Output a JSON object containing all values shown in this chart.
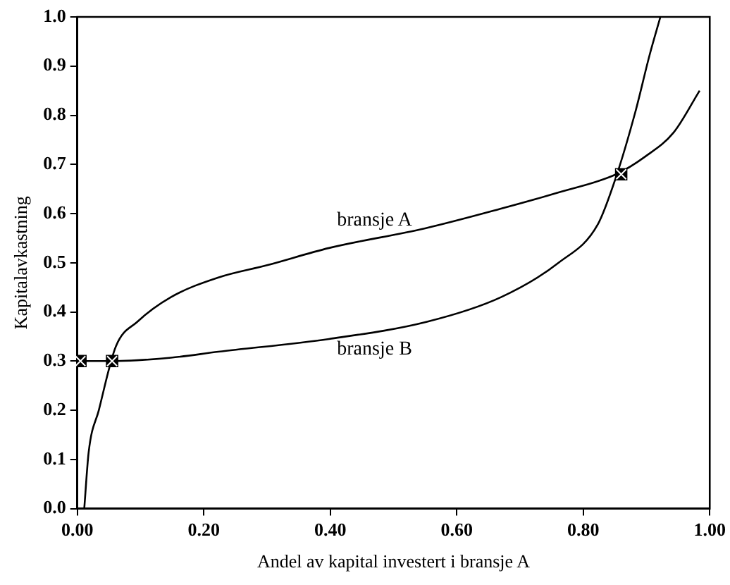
{
  "chart_data": {
    "type": "line",
    "xlabel": "Andel av kapital investert i bransje A",
    "ylabel": "Kapitalavkastning",
    "xlim": [
      0,
      1
    ],
    "xticks": [
      {
        "value": 0,
        "label": "0.00"
      },
      {
        "value": 0.2,
        "label": "0.20"
      },
      {
        "value": 0.4,
        "label": "0.40"
      },
      {
        "value": 0.6,
        "label": "0.60"
      },
      {
        "value": 0.8,
        "label": "0.80"
      },
      {
        "value": 1,
        "label": "1.00"
      }
    ],
    "ylim": [
      0,
      1
    ],
    "yticks": [
      {
        "value": 0,
        "label": "0.0"
      },
      {
        "value": 0.1,
        "label": "0.1"
      },
      {
        "value": 0.2,
        "label": "0.2"
      },
      {
        "value": 0.3,
        "label": "0.3"
      },
      {
        "value": 0.4,
        "label": "0.4"
      },
      {
        "value": 0.5,
        "label": "0.5"
      },
      {
        "value": 0.6,
        "label": "0.6"
      },
      {
        "value": 0.7,
        "label": "0.7"
      },
      {
        "value": 0.8,
        "label": "0.8"
      },
      {
        "value": 0.9,
        "label": "0.9"
      },
      {
        "value": 1,
        "label": "1.0"
      }
    ],
    "grid": false,
    "legend": false,
    "marker": "none",
    "line_style": "solid",
    "series": [
      {
        "name": "bransje A",
        "color": "#000000",
        "x": [
          0.011,
          0.018,
          0.034,
          0.061,
          0.095,
          0.148,
          0.223,
          0.3,
          0.398,
          0.55,
          0.67,
          0.761,
          0.852,
          0.898,
          0.943,
          0.984
        ],
        "values": [
          0,
          0.115,
          0.2,
          0.33,
          0.38,
          0.43,
          0.47,
          0.495,
          0.53,
          0.57,
          0.61,
          0.643,
          0.68,
          0.716,
          0.765,
          0.85
        ]
      },
      {
        "name": "bransje B",
        "color": "#000000",
        "x": [
          0.005,
          0.055,
          0.148,
          0.223,
          0.398,
          0.553,
          0.67,
          0.761,
          0.823,
          0.852,
          0.882,
          0.905,
          0.922
        ],
        "values": [
          0.3,
          0.3,
          0.307,
          0.319,
          0.345,
          0.38,
          0.43,
          0.5,
          0.578,
          0.675,
          0.805,
          0.923,
          1.0
        ]
      },
      {
        "type": "scatter",
        "marker": "square",
        "color": "#000000",
        "x": [
          0.005,
          0.055,
          0.86
        ],
        "values": [
          0.3,
          0.3,
          0.68
        ]
      }
    ]
  }
}
